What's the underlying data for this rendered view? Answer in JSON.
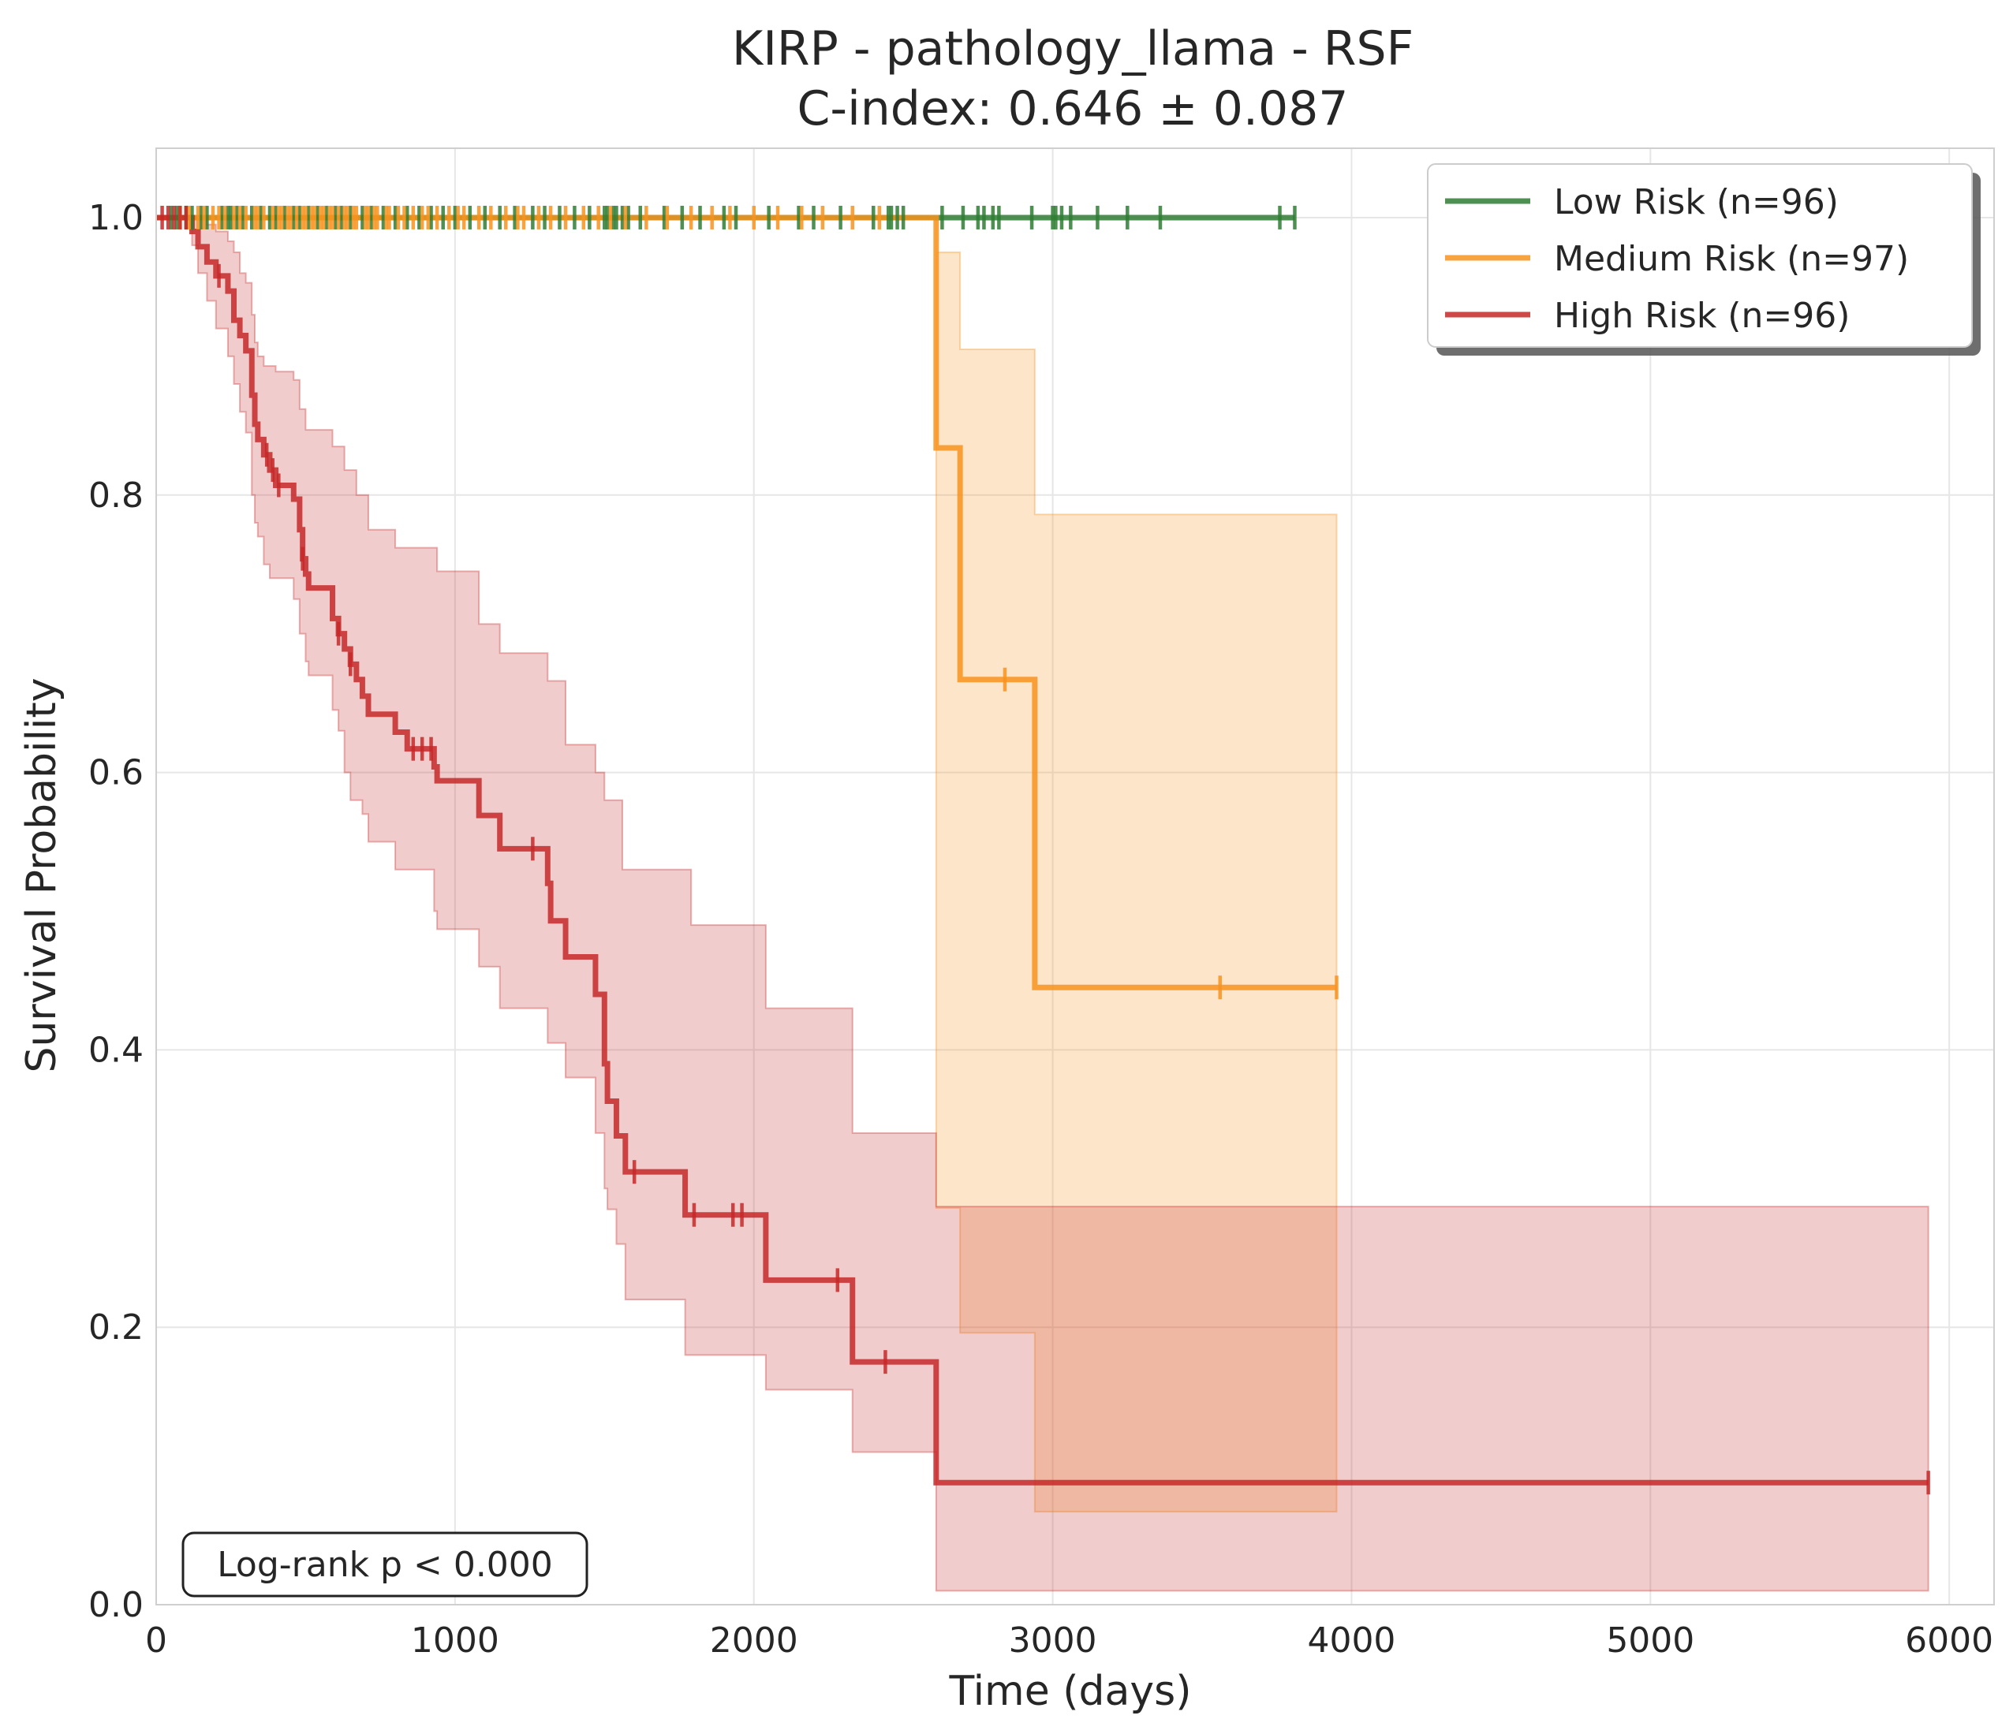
{
  "chart_data": {
    "type": "line",
    "title_line1": "KIRP - pathology_llama - RSF",
    "title_line2": "C-index: 0.646 ± 0.087",
    "xlabel": "Time (days)",
    "ylabel": "Survival Probability",
    "xlim": [
      0,
      6150
    ],
    "ylim": [
      0,
      1.05
    ],
    "xticks": [
      0,
      1000,
      2000,
      3000,
      4000,
      5000,
      6000
    ],
    "yticks": [
      0.0,
      0.2,
      0.4,
      0.6,
      0.8,
      1.0
    ],
    "xtick_labels": [
      "0",
      "1000",
      "2000",
      "3000",
      "4000",
      "5000",
      "6000"
    ],
    "ytick_labels": [
      "0.0",
      "0.2",
      "0.4",
      "0.6",
      "0.8",
      "1.0"
    ],
    "grid": true,
    "legend_position": "top-right",
    "annotation": "Log-rank p < 0.000",
    "series": [
      {
        "name": "Low Risk (n=96)",
        "color": "#2e7d32",
        "steps": [
          [
            0,
            1.0
          ],
          [
            3810,
            1.0
          ]
        ],
        "ci_upper": [],
        "ci_lower": [],
        "censors": [
          50,
          70,
          100,
          120,
          150,
          170,
          220,
          240,
          250,
          270,
          290,
          320,
          350,
          380,
          400,
          430,
          460,
          480,
          510,
          540,
          570,
          600,
          620,
          650,
          690,
          720,
          760,
          800,
          840,
          880,
          920,
          960,
          1000,
          1050,
          1100,
          1150,
          1200,
          1260,
          1300,
          1350,
          1400,
          1450,
          1500,
          1510,
          1530,
          1540,
          1560,
          1580,
          1620,
          1700,
          1760,
          1820,
          1900,
          1940,
          2050,
          2150,
          2200,
          2290,
          2400,
          2450,
          2460,
          2480,
          2500,
          2630,
          2700,
          2750,
          2770,
          2800,
          2820,
          2930,
          3000,
          3010,
          3030,
          3060,
          3150,
          3250,
          3360,
          3760,
          3810
        ]
      },
      {
        "name": "Medium Risk (n=97)",
        "color": "#f7931e",
        "steps": [
          [
            0,
            1.0
          ],
          [
            2610,
            1.0
          ],
          [
            2610,
            0.834
          ],
          [
            2690,
            0.834
          ],
          [
            2690,
            0.667
          ],
          [
            2940,
            0.667
          ],
          [
            2940,
            0.445
          ],
          [
            3950,
            0.445
          ]
        ],
        "ci_upper": [
          [
            0,
            1.0
          ],
          [
            2610,
            1.0
          ],
          [
            2610,
            0.975
          ],
          [
            2690,
            0.975
          ],
          [
            2690,
            0.905
          ],
          [
            2940,
            0.905
          ],
          [
            2940,
            0.786
          ],
          [
            3950,
            0.786
          ]
        ],
        "ci_lower": [
          [
            0,
            1.0
          ],
          [
            2610,
            1.0
          ],
          [
            2610,
            0.286
          ],
          [
            2690,
            0.286
          ],
          [
            2690,
            0.196
          ],
          [
            2940,
            0.196
          ],
          [
            2940,
            0.067
          ],
          [
            3950,
            0.067
          ]
        ],
        "censors": [
          80,
          110,
          140,
          160,
          190,
          210,
          230,
          260,
          280,
          300,
          330,
          340,
          360,
          390,
          410,
          420,
          440,
          450,
          470,
          490,
          500,
          520,
          530,
          550,
          560,
          580,
          590,
          610,
          630,
          640,
          660,
          670,
          700,
          710,
          730,
          740,
          770,
          780,
          810,
          830,
          860,
          890,
          910,
          940,
          980,
          1010,
          1030,
          1080,
          1120,
          1170,
          1210,
          1230,
          1280,
          1320,
          1370,
          1430,
          1480,
          1520,
          1570,
          1640,
          1710,
          1790,
          1860,
          1920,
          2000,
          2080,
          2160,
          2230,
          2330,
          2420,
          2840,
          3560,
          3950
        ]
      },
      {
        "name": "High Risk (n=96)",
        "color": "#c62828",
        "steps": [
          [
            0,
            1.0
          ],
          [
            120,
            1.0
          ],
          [
            120,
            0.99
          ],
          [
            140,
            0.99
          ],
          [
            140,
            0.979
          ],
          [
            170,
            0.979
          ],
          [
            170,
            0.968
          ],
          [
            200,
            0.968
          ],
          [
            200,
            0.958
          ],
          [
            240,
            0.958
          ],
          [
            240,
            0.947
          ],
          [
            260,
            0.947
          ],
          [
            260,
            0.926
          ],
          [
            280,
            0.926
          ],
          [
            280,
            0.915
          ],
          [
            300,
            0.915
          ],
          [
            300,
            0.904
          ],
          [
            320,
            0.904
          ],
          [
            320,
            0.872
          ],
          [
            330,
            0.872
          ],
          [
            330,
            0.851
          ],
          [
            340,
            0.851
          ],
          [
            340,
            0.84
          ],
          [
            360,
            0.84
          ],
          [
            360,
            0.829
          ],
          [
            380,
            0.829
          ],
          [
            380,
            0.818
          ],
          [
            400,
            0.818
          ],
          [
            400,
            0.807
          ],
          [
            460,
            0.807
          ],
          [
            460,
            0.797
          ],
          [
            480,
            0.797
          ],
          [
            480,
            0.775
          ],
          [
            490,
            0.775
          ],
          [
            490,
            0.754
          ],
          [
            500,
            0.754
          ],
          [
            500,
            0.743
          ],
          [
            510,
            0.743
          ],
          [
            510,
            0.733
          ],
          [
            590,
            0.733
          ],
          [
            590,
            0.711
          ],
          [
            610,
            0.711
          ],
          [
            610,
            0.7
          ],
          [
            630,
            0.7
          ],
          [
            630,
            0.689
          ],
          [
            650,
            0.689
          ],
          [
            650,
            0.678
          ],
          [
            670,
            0.678
          ],
          [
            670,
            0.667
          ],
          [
            690,
            0.667
          ],
          [
            690,
            0.655
          ],
          [
            710,
            0.655
          ],
          [
            710,
            0.642
          ],
          [
            800,
            0.642
          ],
          [
            800,
            0.629
          ],
          [
            840,
            0.629
          ],
          [
            840,
            0.617
          ],
          [
            930,
            0.617
          ],
          [
            930,
            0.604
          ],
          [
            940,
            0.604
          ],
          [
            940,
            0.594
          ],
          [
            1080,
            0.594
          ],
          [
            1080,
            0.569
          ],
          [
            1150,
            0.569
          ],
          [
            1150,
            0.545
          ],
          [
            1310,
            0.545
          ],
          [
            1310,
            0.52
          ],
          [
            1320,
            0.52
          ],
          [
            1320,
            0.493
          ],
          [
            1370,
            0.493
          ],
          [
            1370,
            0.467
          ],
          [
            1470,
            0.467
          ],
          [
            1470,
            0.44
          ],
          [
            1500,
            0.44
          ],
          [
            1500,
            0.39
          ],
          [
            1510,
            0.39
          ],
          [
            1510,
            0.363
          ],
          [
            1540,
            0.363
          ],
          [
            1540,
            0.338
          ],
          [
            1570,
            0.338
          ],
          [
            1570,
            0.312
          ],
          [
            1770,
            0.312
          ],
          [
            1770,
            0.281
          ],
          [
            2040,
            0.281
          ],
          [
            2040,
            0.234
          ],
          [
            2330,
            0.234
          ],
          [
            2330,
            0.175
          ],
          [
            2610,
            0.175
          ],
          [
            2610,
            0.088
          ],
          [
            5930,
            0.088
          ]
        ],
        "ci_upper": [
          [
            0,
            1.0
          ],
          [
            120,
            1.0
          ],
          [
            140,
            1.0
          ],
          [
            170,
            0.995
          ],
          [
            200,
            0.99
          ],
          [
            240,
            0.983
          ],
          [
            260,
            0.975
          ],
          [
            280,
            0.96
          ],
          [
            300,
            0.953
          ],
          [
            320,
            0.93
          ],
          [
            330,
            0.91
          ],
          [
            340,
            0.9
          ],
          [
            360,
            0.893
          ],
          [
            400,
            0.889
          ],
          [
            460,
            0.883
          ],
          [
            480,
            0.862
          ],
          [
            500,
            0.847
          ],
          [
            590,
            0.835
          ],
          [
            630,
            0.818
          ],
          [
            670,
            0.8
          ],
          [
            710,
            0.775
          ],
          [
            800,
            0.762
          ],
          [
            940,
            0.745
          ],
          [
            1080,
            0.707
          ],
          [
            1150,
            0.686
          ],
          [
            1310,
            0.666
          ],
          [
            1370,
            0.62
          ],
          [
            1470,
            0.6
          ],
          [
            1500,
            0.58
          ],
          [
            1560,
            0.53
          ],
          [
            1790,
            0.49
          ],
          [
            2040,
            0.43
          ],
          [
            2330,
            0.34
          ],
          [
            2610,
            0.34
          ],
          [
            2610,
            0.287
          ],
          [
            5930,
            0.287
          ]
        ],
        "ci_lower": [
          [
            0,
            1.0
          ],
          [
            120,
            0.98
          ],
          [
            140,
            0.96
          ],
          [
            170,
            0.94
          ],
          [
            200,
            0.92
          ],
          [
            240,
            0.9
          ],
          [
            260,
            0.88
          ],
          [
            280,
            0.86
          ],
          [
            300,
            0.845
          ],
          [
            320,
            0.8
          ],
          [
            330,
            0.78
          ],
          [
            340,
            0.77
          ],
          [
            360,
            0.75
          ],
          [
            380,
            0.74
          ],
          [
            400,
            0.74
          ],
          [
            460,
            0.725
          ],
          [
            480,
            0.7
          ],
          [
            500,
            0.68
          ],
          [
            510,
            0.67
          ],
          [
            590,
            0.645
          ],
          [
            610,
            0.63
          ],
          [
            630,
            0.6
          ],
          [
            650,
            0.58
          ],
          [
            690,
            0.57
          ],
          [
            710,
            0.55
          ],
          [
            800,
            0.53
          ],
          [
            930,
            0.5
          ],
          [
            940,
            0.487
          ],
          [
            1080,
            0.46
          ],
          [
            1150,
            0.43
          ],
          [
            1310,
            0.405
          ],
          [
            1370,
            0.38
          ],
          [
            1470,
            0.34
          ],
          [
            1500,
            0.3
          ],
          [
            1510,
            0.285
          ],
          [
            1540,
            0.26
          ],
          [
            1570,
            0.22
          ],
          [
            1770,
            0.18
          ],
          [
            2040,
            0.155
          ],
          [
            2330,
            0.11
          ],
          [
            2610,
            0.06
          ],
          [
            2610,
            0.01
          ],
          [
            5930,
            0.01
          ]
        ],
        "censors": [
          20,
          40,
          60,
          80,
          100,
          210,
          370,
          390,
          410,
          490,
          610,
          650,
          860,
          890,
          920,
          1260,
          1600,
          1800,
          1930,
          1960,
          2280,
          2440,
          5930
        ]
      }
    ]
  }
}
